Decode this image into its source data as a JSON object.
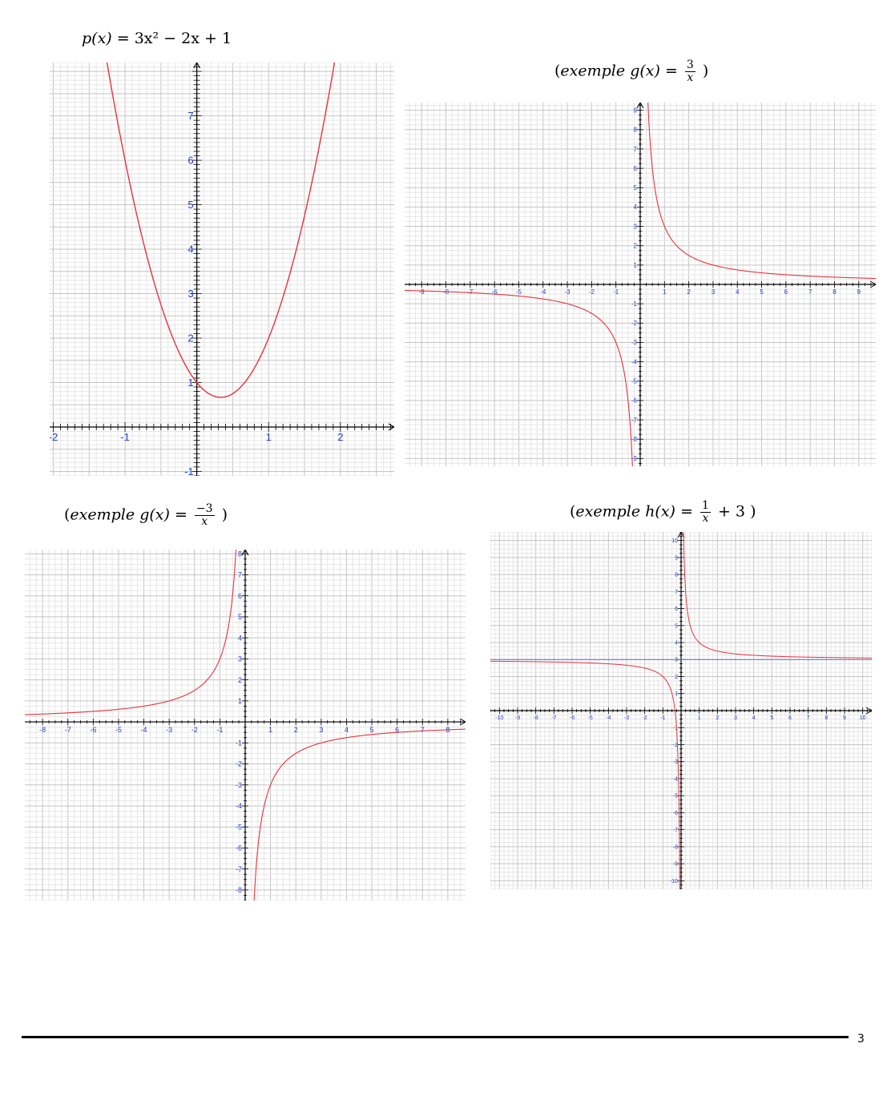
{
  "captions": {
    "p": {
      "lhs": "p(x)",
      "eq": "=",
      "rhs": "3x² − 2x + 1"
    },
    "g1": {
      "open": "(",
      "word": "exemple",
      "fn": "g(x)",
      "eq": "=",
      "num": "3",
      "den": "x",
      "close": ")"
    },
    "g2": {
      "open": "(",
      "word": "exemple",
      "fn": "g(x)",
      "eq": "=",
      "num": "−3",
      "den": "x",
      "close": ")"
    },
    "h": {
      "open": "(",
      "word": "exemple",
      "fn": "h(x)",
      "eq": "=",
      "num": "1",
      "den": "x",
      "tail": "+ 3",
      "close": ")"
    }
  },
  "page_number": "3",
  "colors": {
    "curve": "#e8323c",
    "axis_label": "#1f3fcf",
    "asymptote": "#5b6fd6",
    "grid_minor": "#e6e6e6",
    "grid_major": "#c4c4c4"
  },
  "chart_data": [
    {
      "type": "line",
      "function": "p(x) = 3x² − 2x + 1",
      "series": [
        {
          "formula": "3x^2-2x+1"
        }
      ],
      "x_ticks": [
        -2,
        -1,
        1,
        2
      ],
      "y_ticks": [
        -1,
        1,
        2,
        3,
        4,
        5,
        6,
        7
      ],
      "xlim": [
        -2.05,
        2.75
      ],
      "ylim": [
        -1.1,
        8.2
      ],
      "grid": true
    },
    {
      "type": "line",
      "function": "g(x) = 3/x",
      "series": [
        {
          "formula": "3/x"
        }
      ],
      "x_ticks": [
        -9,
        -8,
        -7,
        -6,
        -5,
        -4,
        -3,
        -2,
        -1,
        1,
        2,
        3,
        4,
        5,
        6,
        7,
        8,
        9
      ],
      "y_ticks": [
        -9,
        -8,
        -7,
        -6,
        -5,
        -4,
        -3,
        -2,
        -1,
        1,
        2,
        3,
        4,
        5,
        6,
        7,
        8,
        9
      ],
      "xlim": [
        -9.7,
        9.7
      ],
      "ylim": [
        -9.4,
        9.4
      ],
      "grid": true
    },
    {
      "type": "line",
      "function": "g(x) = −3/x",
      "series": [
        {
          "formula": "-3/x"
        }
      ],
      "x_ticks": [
        -8,
        -7,
        -6,
        -5,
        -4,
        -3,
        -2,
        -1,
        1,
        2,
        3,
        4,
        5,
        6,
        7,
        8
      ],
      "y_ticks": [
        -8,
        -7,
        -6,
        -5,
        -4,
        -3,
        -2,
        -1,
        1,
        2,
        3,
        4,
        5,
        6,
        7,
        8
      ],
      "xlim": [
        -8.7,
        8.7
      ],
      "ylim": [
        -8.5,
        8.2
      ],
      "grid": true
    },
    {
      "type": "line",
      "function": "h(x) = 1/x + 3",
      "series": [
        {
          "formula": "1/x+3"
        },
        {
          "formula": "3"
        }
      ],
      "x_ticks": [
        -10,
        -9,
        -8,
        -7,
        -6,
        -5,
        -4,
        -3,
        -2,
        -1,
        1,
        2,
        3,
        4,
        5,
        6,
        7,
        8,
        9,
        10
      ],
      "y_ticks": [
        -10,
        -9,
        -8,
        -7,
        -6,
        -5,
        -4,
        -3,
        -2,
        -1,
        1,
        2,
        3,
        4,
        5,
        6,
        7,
        8,
        9,
        10
      ],
      "xlim": [
        -10.5,
        10.5
      ],
      "ylim": [
        -10.5,
        10.5
      ],
      "grid": true
    }
  ]
}
